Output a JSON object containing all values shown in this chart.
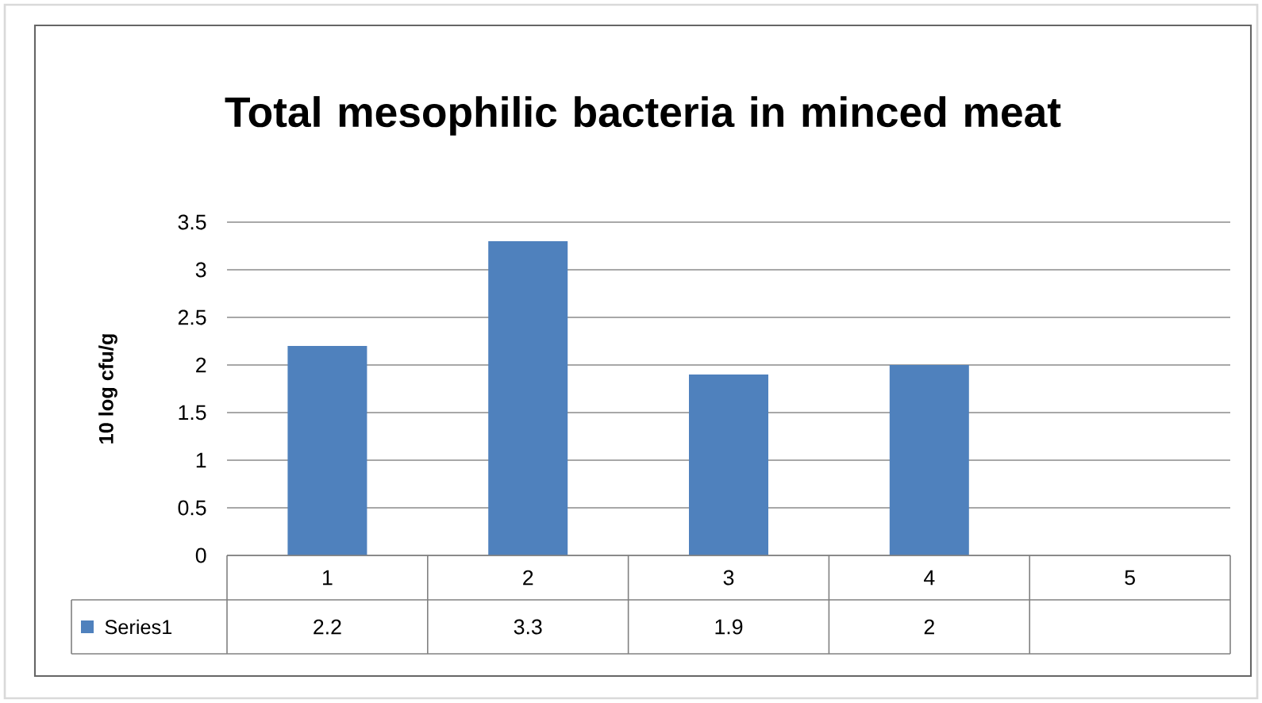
{
  "chart_data": {
    "type": "bar",
    "title": "Total mesophilic bacteria in minced meat",
    "ylabel": "10 log cfu/g",
    "categories": [
      "1",
      "2",
      "3",
      "4",
      "5"
    ],
    "series": [
      {
        "name": "Series1",
        "color": "#4f81bd",
        "values": [
          2.2,
          3.3,
          1.9,
          2,
          null
        ]
      }
    ],
    "ylim": [
      0,
      3.5
    ],
    "yticks": [
      0,
      0.5,
      1,
      1.5,
      2,
      2.5,
      3,
      3.5
    ],
    "grid": "y",
    "data_labels": true,
    "legend": "bottom"
  }
}
